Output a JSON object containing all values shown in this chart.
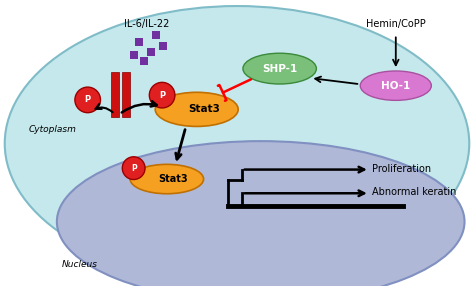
{
  "fig_width": 4.74,
  "fig_height": 2.87,
  "dpi": 100,
  "bg_color": "#ffffff",
  "cell_bg": "#c5e8ed",
  "nucleus_bg": "#b0b8d8",
  "stat3_color": "#f5a020",
  "p_color": "#e02020",
  "shp1_color": "#7abf7a",
  "ho1_color": "#d878d0",
  "receptor_color": "#cc1010",
  "il_squares_color": "#7030a0",
  "text_color": "#000000",
  "cytoplasm_label": "Cytoplasm",
  "nucleus_label": "Nucleus",
  "il_label": "IL-6/IL-22",
  "hemin_label": "Hemin/CoPP",
  "shp1_label": "SHP-1",
  "ho1_label": "HO-1",
  "stat3_label": "Stat3",
  "p_label": "P",
  "proliferation_label": "Proliferation",
  "keratin_label": "Abnormal keratin"
}
